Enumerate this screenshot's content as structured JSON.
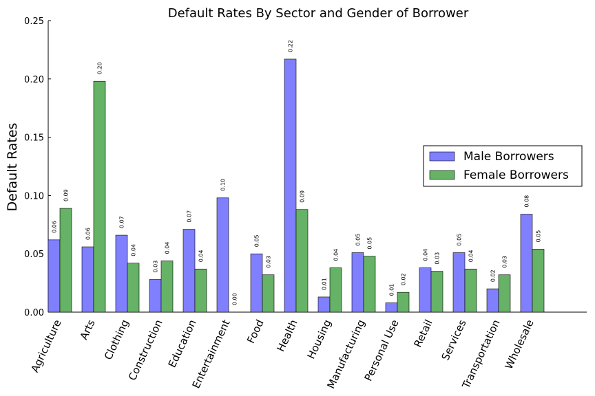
{
  "chart_data": {
    "type": "bar",
    "title": "Default Rates By Sector and Gender of Borrower",
    "xlabel": "",
    "ylabel": "Default Rates",
    "ylim": [
      0,
      0.25
    ],
    "yticks": [
      "0.00",
      "0.05",
      "0.10",
      "0.15",
      "0.20",
      "0.25"
    ],
    "legend_position": "right",
    "categories": [
      "Agriculture",
      "Arts",
      "Clothing",
      "Construction",
      "Education",
      "Entertainment",
      "Food",
      "Health",
      "Housing",
      "Manufacturing",
      "Personal Use",
      "Retail",
      "Services",
      "Transportation",
      "Wholesale"
    ],
    "series": [
      {
        "name": "Male Borrowers",
        "color": "#8080ff",
        "values": [
          0.062,
          0.056,
          0.066,
          0.028,
          0.071,
          0.098,
          0.05,
          0.217,
          0.013,
          0.051,
          0.008,
          0.038,
          0.051,
          0.02,
          0.084
        ],
        "labels": [
          "0.06",
          "0.06",
          "0.07",
          "0.03",
          "0.07",
          "0.10",
          "0.05",
          "0.22",
          "0.01",
          "0.05",
          "0.01",
          "0.04",
          "0.05",
          "0.02",
          "0.08"
        ]
      },
      {
        "name": "Female Borrowers",
        "color": "#66b266",
        "values": [
          0.089,
          0.198,
          0.042,
          0.044,
          0.037,
          0.0,
          0.032,
          0.088,
          0.038,
          0.048,
          0.017,
          0.035,
          0.037,
          0.032,
          0.054
        ],
        "labels": [
          "0.09",
          "0.20",
          "0.04",
          "0.04",
          "0.04",
          "0.00",
          "0.03",
          "0.09",
          "0.04",
          "0.05",
          "0.02",
          "0.03",
          "0.04",
          "0.03",
          "0.05"
        ]
      }
    ]
  }
}
